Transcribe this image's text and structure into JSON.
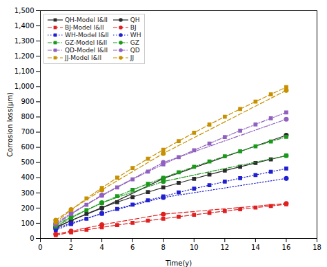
{
  "chart_data": {
    "type": "line",
    "xlabel": "Time(y)",
    "ylabel": "Corrosion loss(μm)",
    "xlim": [
      0,
      18
    ],
    "ylim": [
      0,
      1500
    ],
    "xticks": [
      0,
      2,
      4,
      6,
      8,
      10,
      12,
      14,
      16,
      18
    ],
    "yticks": [
      0,
      100,
      200,
      300,
      400,
      500,
      600,
      700,
      800,
      900,
      1000,
      1100,
      1200,
      1300,
      1400,
      1500
    ],
    "grid": false,
    "legend": "upper left",
    "series": [
      {
        "name": "QH-Model I&II",
        "color": "#2b2b2b",
        "line_style": "solid",
        "marker": "square",
        "x": [
          1,
          2,
          3,
          4,
          5,
          6,
          7,
          8,
          9,
          10,
          11,
          12,
          13,
          14,
          15,
          16
        ],
        "values": [
          68,
          118,
          162,
          202,
          239,
          273,
          305,
          336,
          365,
          393,
          421,
          447,
          472,
          497,
          521,
          545
        ]
      },
      {
        "name": "QH",
        "color": "#2b2b2b",
        "line_style": "solid",
        "marker": "circle",
        "x": [
          1,
          2,
          4,
          8,
          16
        ],
        "values": [
          75,
          118,
          200,
          395,
          680
        ]
      },
      {
        "name": "BJ-Model I&II",
        "color": "#e02020",
        "line_style": "dashed",
        "marker": "square",
        "x": [
          1,
          2,
          3,
          4,
          5,
          6,
          7,
          8,
          9,
          10,
          11,
          12,
          13,
          14,
          15,
          16
        ],
        "values": [
          22,
          40,
          57,
          73,
          88,
          103,
          117,
          130,
          143,
          156,
          168,
          180,
          192,
          203,
          214,
          225
        ]
      },
      {
        "name": "BJ",
        "color": "#e02020",
        "line_style": "dashed",
        "marker": "circle",
        "x": [
          1,
          2,
          4,
          8,
          16
        ],
        "values": [
          28,
          48,
          90,
          160,
          230
        ]
      },
      {
        "name": "WH-Model I&II",
        "color": "#2020d0",
        "line_style": "dotted",
        "marker": "square",
        "x": [
          1,
          2,
          3,
          4,
          5,
          6,
          7,
          8,
          9,
          10,
          11,
          12,
          13,
          14,
          15,
          16
        ],
        "values": [
          55,
          95,
          130,
          163,
          194,
          223,
          251,
          277,
          303,
          328,
          351,
          374,
          397,
          418,
          439,
          460
        ]
      },
      {
        "name": "WH",
        "color": "#2020d0",
        "line_style": "dotted",
        "marker": "circle",
        "x": [
          1,
          2,
          4,
          8,
          16
        ],
        "values": [
          65,
          100,
          165,
          270,
          395
        ]
      },
      {
        "name": "GZ-Model I&II",
        "color": "#1a9a1a",
        "line_style": "dashdot",
        "marker": "square",
        "x": [
          1,
          2,
          3,
          4,
          5,
          6,
          7,
          8,
          9,
          10,
          11,
          12,
          13,
          14,
          15,
          16
        ],
        "values": [
          78,
          135,
          186,
          233,
          278,
          320,
          360,
          399,
          436,
          472,
          507,
          541,
          574,
          607,
          638,
          669
        ]
      },
      {
        "name": "GZ",
        "color": "#1a9a1a",
        "line_style": "dashdot",
        "marker": "circle",
        "x": [
          1,
          2,
          4,
          8,
          16
        ],
        "values": [
          90,
          140,
          235,
          375,
          545
        ]
      },
      {
        "name": "QD-Model I&II",
        "color": "#9060c0",
        "line_style": "dashdot",
        "marker": "square",
        "x": [
          1,
          2,
          3,
          4,
          5,
          6,
          7,
          8,
          9,
          10,
          11,
          12,
          13,
          14,
          15,
          16
        ],
        "values": [
          90,
          160,
          222,
          281,
          336,
          389,
          440,
          488,
          535,
          581,
          625,
          668,
          710,
          751,
          791,
          830
        ]
      },
      {
        "name": "QD",
        "color": "#9060c0",
        "line_style": "dashdot",
        "marker": "circle",
        "x": [
          1,
          2,
          4,
          8,
          16
        ],
        "values": [
          100,
          165,
          285,
          500,
          785
        ]
      },
      {
        "name": "JJ-Model I&II",
        "color": "#c89000",
        "line_style": "dashed",
        "marker": "square",
        "x": [
          1,
          2,
          3,
          4,
          5,
          6,
          7,
          8,
          9,
          10,
          11,
          12,
          13,
          14,
          15,
          16
        ],
        "values": [
          105,
          188,
          263,
          333,
          400,
          464,
          525,
          584,
          641,
          696,
          750,
          802,
          852,
          901,
          949,
          996
        ]
      },
      {
        "name": "JJ",
        "color": "#c89000",
        "line_style": "dashed",
        "marker": "circle",
        "x": [
          1,
          2,
          4,
          8,
          16
        ],
        "values": [
          120,
          190,
          320,
          560,
          975
        ]
      }
    ]
  }
}
